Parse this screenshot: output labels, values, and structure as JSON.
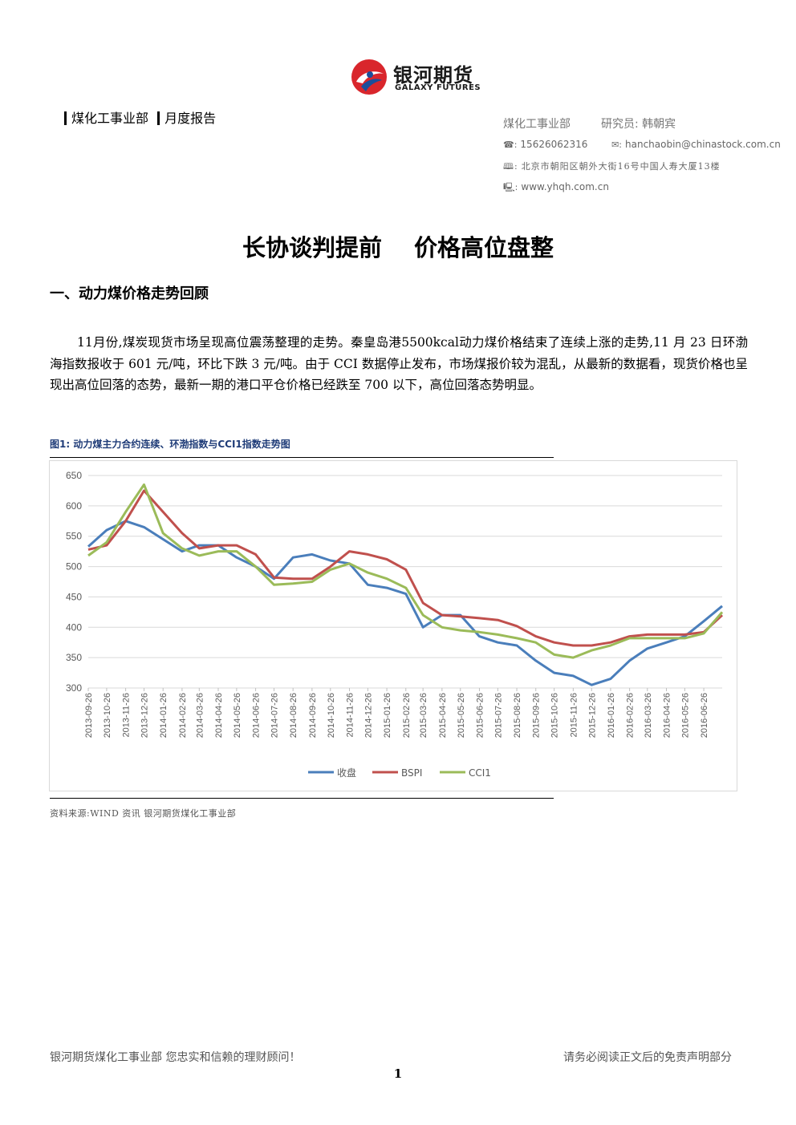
{
  "brand": {
    "name_cn": "银河期货",
    "name_en": "GALAXY FUTURES",
    "colors": {
      "red": "#d9262c",
      "blue": "#1b4e9b",
      "dark": "#1a1a1a"
    }
  },
  "header": {
    "department": "煤化工事业部",
    "report_type": "月度报告"
  },
  "contact": {
    "department": "煤化工事业部",
    "researcher": "研究员: 韩朝宾",
    "phone_icon": "☎:",
    "phone": "15626062316",
    "email_icon": "✉:",
    "email": "hanchaobin@chinastock.com.cn",
    "address_icon": "🕮:",
    "address": "北京市朝阳区朝外大街16号中国人寿大厦13楼",
    "web_icon": "🖳:",
    "website": "www.yhqh.com.cn"
  },
  "document": {
    "title_part1": "长协谈判提前",
    "title_part2": "价格高位盘整",
    "section1": "一、动力煤价格走势回顾",
    "paragraph1": "11月份,煤炭现货市场呈现高位震荡整理的走势。秦皇岛港5500kcal动力煤价格结束了连续上涨的走势,11 月 23 日环渤海指数报收于 601 元/吨，环比下跌 3 元/吨。由于 CCI 数据停止发布，市场煤报价较为混乱，从最新的数据看，现货价格也呈现出高位回落的态势，最新一期的港口平仓价格已经跌至 700 以下，高位回落态势明显。"
  },
  "figure": {
    "caption": "图1: 动力煤主力合约连续、环渤指数与CCI1指数走势图",
    "source": "资料来源:WIND 资讯   银河期货煤化工事业部"
  },
  "chart_data": {
    "type": "line",
    "title": "",
    "xlabel": "",
    "ylabel": "",
    "ylim": [
      300,
      650
    ],
    "yticks": [
      300,
      350,
      400,
      450,
      500,
      550,
      600,
      650
    ],
    "grid": true,
    "legend_position": "bottom",
    "x": [
      "2013-09-26",
      "2013-10-26",
      "2013-11-26",
      "2013-12-26",
      "2014-01-26",
      "2014-02-26",
      "2014-03-26",
      "2014-04-26",
      "2014-05-26",
      "2014-06-26",
      "2014-07-26",
      "2014-08-26",
      "2014-09-26",
      "2014-10-26",
      "2014-11-26",
      "2014-12-26",
      "2015-01-26",
      "2015-02-26",
      "2015-03-26",
      "2015-04-26",
      "2015-05-26",
      "2015-06-26",
      "2015-07-26",
      "2015-08-26",
      "2015-09-26",
      "2015-10-26",
      "2015-11-26",
      "2015-12-26",
      "2016-01-26",
      "2016-02-26",
      "2016-03-26",
      "2016-04-26",
      "2016-05-26",
      "2016-06-26",
      "2016-07-26"
    ],
    "xticks": [
      "2013-09-26",
      "2013-10-26",
      "2013-11-26",
      "2013-12-26",
      "2014-01-26",
      "2014-02-26",
      "2014-03-26",
      "2014-04-26",
      "2014-05-26",
      "2014-06-26",
      "2014-07-26",
      "2014-08-26",
      "2014-09-26",
      "2014-10-26",
      "2014-11-26",
      "2014-12-26",
      "2015-01-26",
      "2015-02-26",
      "2015-03-26",
      "2015-04-26",
      "2015-05-26",
      "2015-06-26",
      "2015-07-26",
      "2015-08-26",
      "2015-09-26",
      "2015-10-26",
      "2015-11-26",
      "2015-12-26",
      "2016-01-26",
      "2016-02-26",
      "2016-03-26",
      "2016-04-26",
      "2016-05-26",
      "2016-06-26"
    ],
    "series": [
      {
        "name": "收盘",
        "color": "#4a7ebb",
        "values": [
          533,
          560,
          575,
          565,
          545,
          525,
          535,
          535,
          515,
          500,
          480,
          515,
          520,
          510,
          505,
          470,
          465,
          455,
          400,
          420,
          420,
          385,
          375,
          370,
          345,
          325,
          320,
          305,
          315,
          345,
          365,
          375,
          385,
          410,
          435
        ]
      },
      {
        "name": "BSPI",
        "color": "#c0504d",
        "values": [
          528,
          535,
          575,
          625,
          590,
          555,
          530,
          535,
          535,
          520,
          482,
          480,
          480,
          500,
          525,
          520,
          512,
          495,
          440,
          420,
          418,
          415,
          412,
          402,
          385,
          375,
          370,
          370,
          375,
          385,
          388,
          388,
          388,
          392,
          420
        ]
      },
      {
        "name": "CCI1",
        "color": "#9bbb59",
        "values": [
          518,
          540,
          590,
          635,
          555,
          530,
          518,
          525,
          525,
          500,
          470,
          472,
          475,
          495,
          505,
          490,
          480,
          465,
          420,
          400,
          395,
          392,
          388,
          382,
          375,
          355,
          350,
          362,
          370,
          382,
          382,
          382,
          382,
          390,
          425
        ]
      }
    ]
  },
  "footer": {
    "left": "银河期货煤化工事业部  您忠实和信赖的理财顾问！",
    "right": "请务必阅读正文后的免责声明部分",
    "page_number": "1"
  }
}
